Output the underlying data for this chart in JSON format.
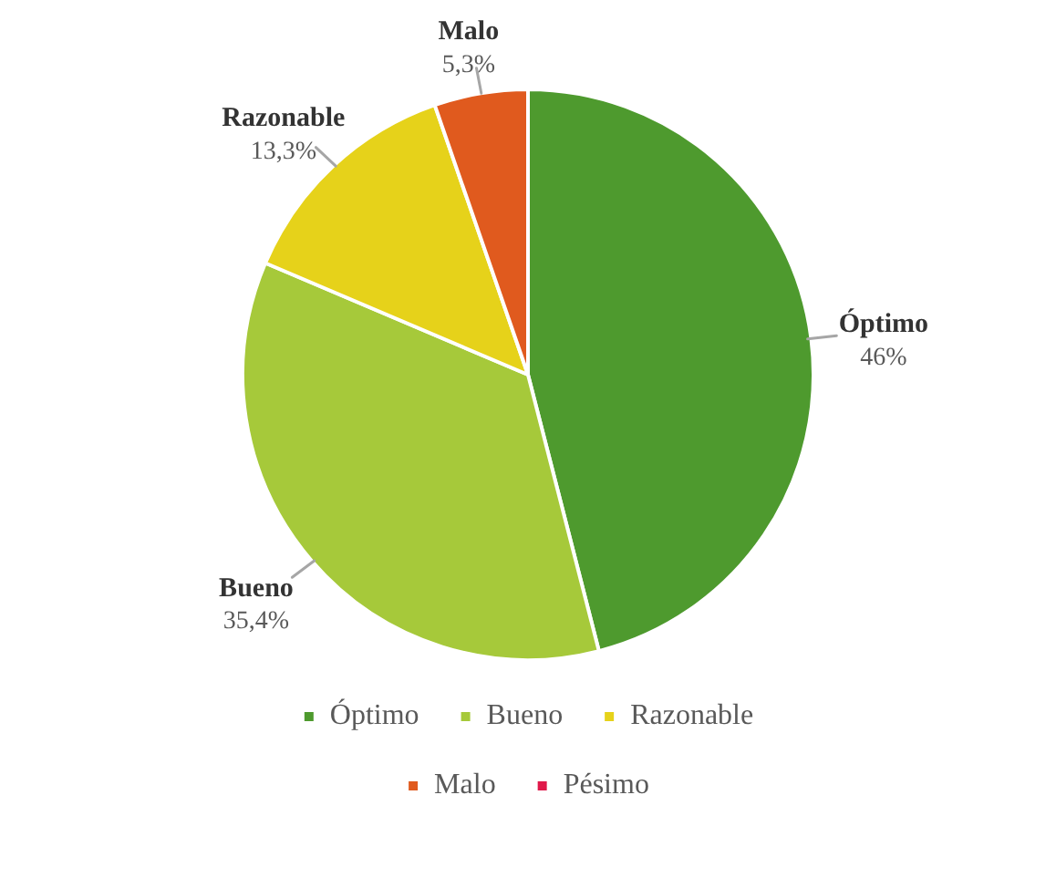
{
  "chart_data": {
    "type": "pie",
    "categories": [
      "Óptimo",
      "Bueno",
      "Razonable",
      "Malo",
      "Pésimo"
    ],
    "values": [
      46,
      35.4,
      13.3,
      5.3,
      0
    ],
    "colors": [
      "#4e9a2e",
      "#a6c93a",
      "#e6d21a",
      "#e05a1e",
      "#e0194a"
    ],
    "value_labels": [
      "46%",
      "35,4%",
      "13,3%",
      "5,3%",
      null
    ],
    "legend": "bottom"
  }
}
